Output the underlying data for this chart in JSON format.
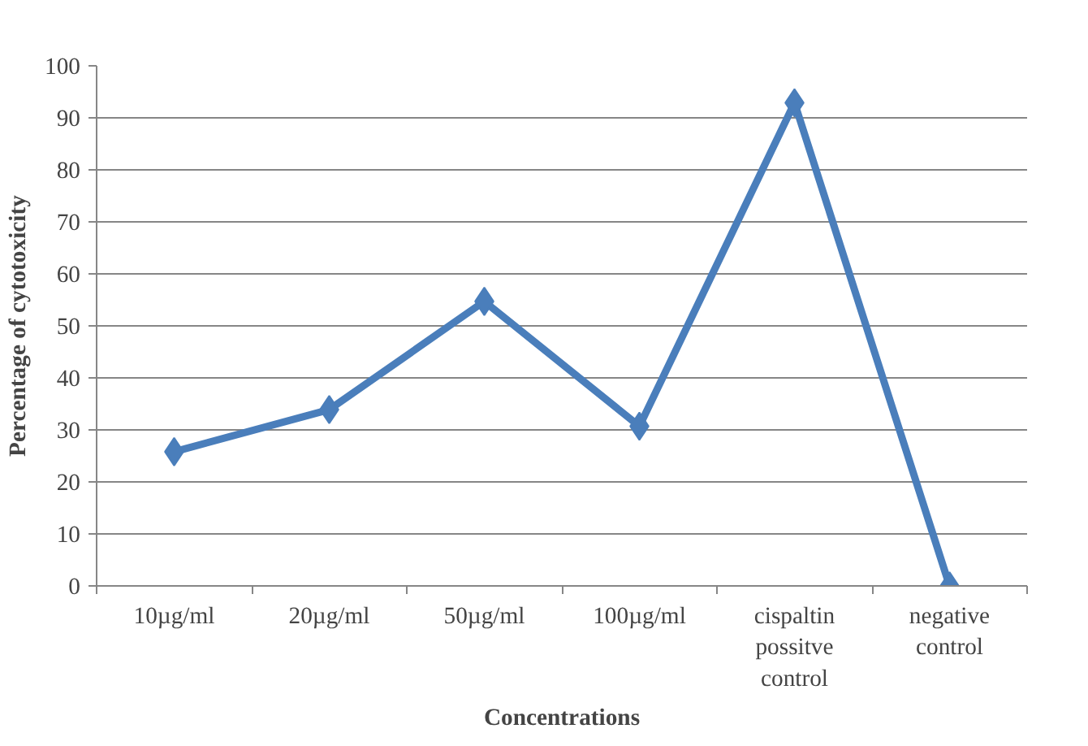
{
  "chart_data": {
    "type": "line",
    "xlabel": "Concentrations",
    "ylabel": "Percentage of cytotoxicity",
    "categories": [
      "10µg/ml",
      "20µg/ml",
      "50µg/ml",
      "100µg/ml",
      "cispaltin possitve control",
      "negative control"
    ],
    "series": [
      {
        "color": "#4a7ebb",
        "values": [
          25.8,
          33.9,
          54.7,
          30.7,
          92.9,
          0
        ]
      }
    ],
    "ylim": [
      0,
      100
    ],
    "yticks": [
      0,
      10,
      20,
      30,
      40,
      50,
      60,
      70,
      80,
      90,
      100
    ],
    "grid": "y",
    "marker": "diamond",
    "line_style": "solid"
  }
}
